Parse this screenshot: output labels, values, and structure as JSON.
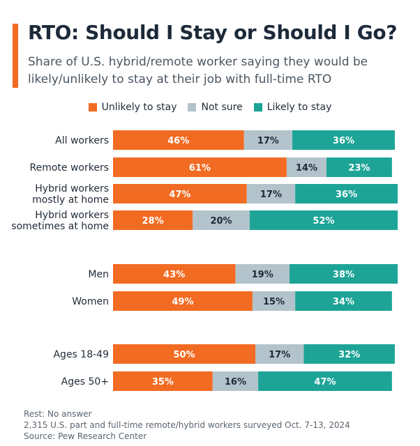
{
  "header": {
    "title": "RTO: Should I Stay or Should I Go?",
    "subtitle": "Share of U.S. hybrid/remote worker saying they would be likely/unlikely to stay at their job with full-time RTO"
  },
  "colors": {
    "unlikely": "#f26b22",
    "not_sure": "#b3c3cb",
    "likely": "#1da497",
    "accent": "#f26b22"
  },
  "chart_data": {
    "type": "bar",
    "orientation": "horizontal",
    "stacked": true,
    "legend_position": "top-center",
    "series": [
      {
        "name": "Unlikely to stay",
        "color": "#f26b22",
        "label_color": "#ffffff",
        "values": [
          46,
          61,
          47,
          28,
          43,
          49,
          50,
          35
        ]
      },
      {
        "name": "Not sure",
        "color": "#b3c3cb",
        "label_color": "#1f2a36",
        "values": [
          17,
          14,
          17,
          20,
          19,
          15,
          17,
          16
        ]
      },
      {
        "name": "Likely to stay",
        "color": "#1da497",
        "label_color": "#ffffff",
        "values": [
          36,
          23,
          36,
          52,
          38,
          34,
          32,
          47
        ]
      }
    ],
    "categories": [
      [
        "All workers"
      ],
      [
        "Remote workers"
      ],
      [
        "Hybrid workers",
        "mostly at home"
      ],
      [
        "Hybrid workers",
        "sometimes at home"
      ],
      [
        "Men"
      ],
      [
        "Women"
      ],
      [
        "Ages 18-49"
      ],
      [
        "Ages 50+"
      ]
    ],
    "groups": [
      [
        0,
        1,
        2,
        3
      ],
      [
        4,
        5
      ],
      [
        6,
        7
      ]
    ],
    "value_suffix": "%",
    "xlim": [
      0,
      100
    ]
  },
  "footer": {
    "note": "Rest: No answer",
    "sample": "2,315 U.S. part and full-time remote/hybrid workers surveyed Oct. 7-13, 2024",
    "source": "Source: Pew Research Center"
  }
}
